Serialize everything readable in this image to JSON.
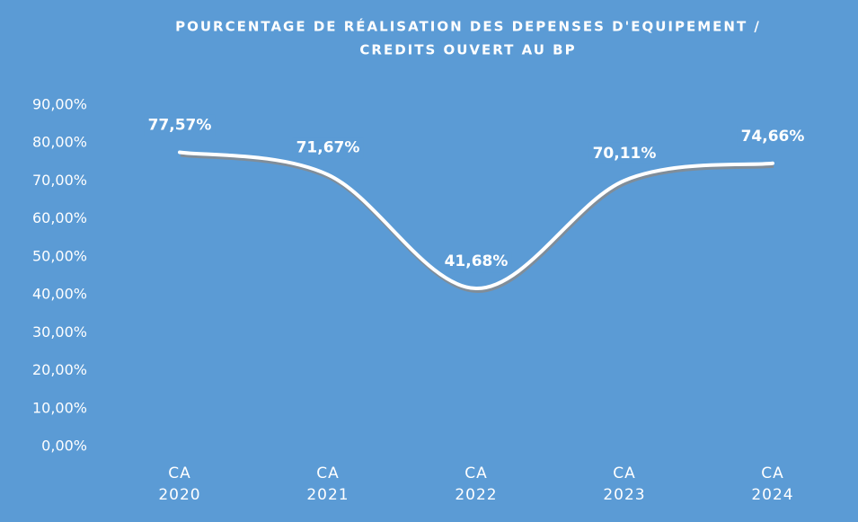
{
  "chart_data": {
    "type": "line",
    "title": [
      "POURCENTAGE DE RÉALISATION DES DEPENSES D'EQUIPEMENT /",
      "CREDITS OUVERT AU BP"
    ],
    "categories": [
      "CA 2020",
      "CA 2021",
      "CA 2022",
      "CA 2023",
      "CA 2024"
    ],
    "values": [
      77.57,
      71.67,
      41.68,
      70.11,
      74.66
    ],
    "value_labels": [
      "77,57%",
      "71,67%",
      "41,68%",
      "70,11%",
      "74,66%"
    ],
    "color": "#ffffff",
    "background": "#5b9bd5",
    "smooth": true,
    "ylim": [
      0,
      90
    ],
    "yticks": [
      {
        "value": 0,
        "label": "0,00%"
      },
      {
        "value": 10,
        "label": "10,00%"
      },
      {
        "value": 20,
        "label": "20,00%"
      },
      {
        "value": 30,
        "label": "30,00%"
      },
      {
        "value": 40,
        "label": "40,00%"
      },
      {
        "value": 50,
        "label": "50,00%"
      },
      {
        "value": 60,
        "label": "60,00%"
      },
      {
        "value": 70,
        "label": "70,00%"
      },
      {
        "value": 80,
        "label": "80,00%"
      },
      {
        "value": 90,
        "label": "90,00%"
      }
    ]
  }
}
